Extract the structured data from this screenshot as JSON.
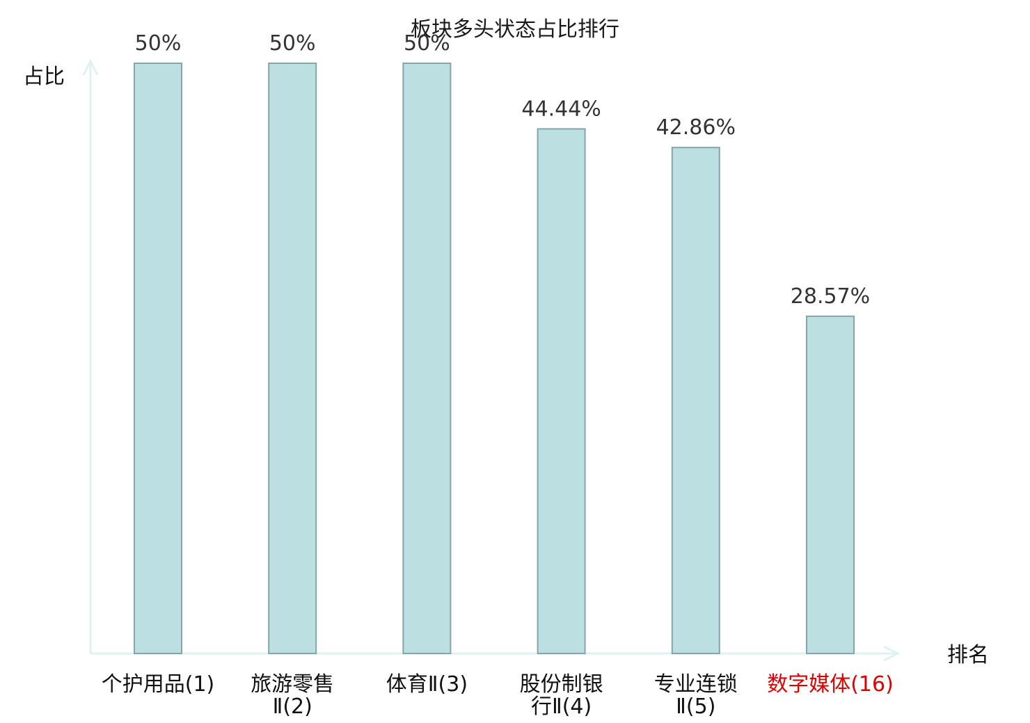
{
  "chart_data": {
    "type": "bar",
    "title": "板块多头状态占比排行",
    "xlabel": "排名",
    "ylabel": "占比",
    "categories": [
      [
        "个护用品(1)"
      ],
      [
        "旅游零售",
        "Ⅱ(2)"
      ],
      [
        "体育Ⅱ(3)"
      ],
      [
        "股份制银",
        "行Ⅱ(4)"
      ],
      [
        "专业连锁",
        "Ⅱ(5)"
      ],
      [
        "数字媒体(16)"
      ]
    ],
    "values": [
      50,
      50,
      50,
      44.44,
      42.86,
      28.57
    ],
    "value_labels": [
      "50%",
      "50%",
      "50%",
      "44.44%",
      "42.86%",
      "28.57%"
    ],
    "highlight_index": 5,
    "ylim": [
      0,
      50
    ],
    "grid": false,
    "colors": {
      "bar_fill": "#bce0e2",
      "bar_stroke": "#86a5a8",
      "axis": "#e0f2ef",
      "highlight_label": "#e00000"
    }
  }
}
